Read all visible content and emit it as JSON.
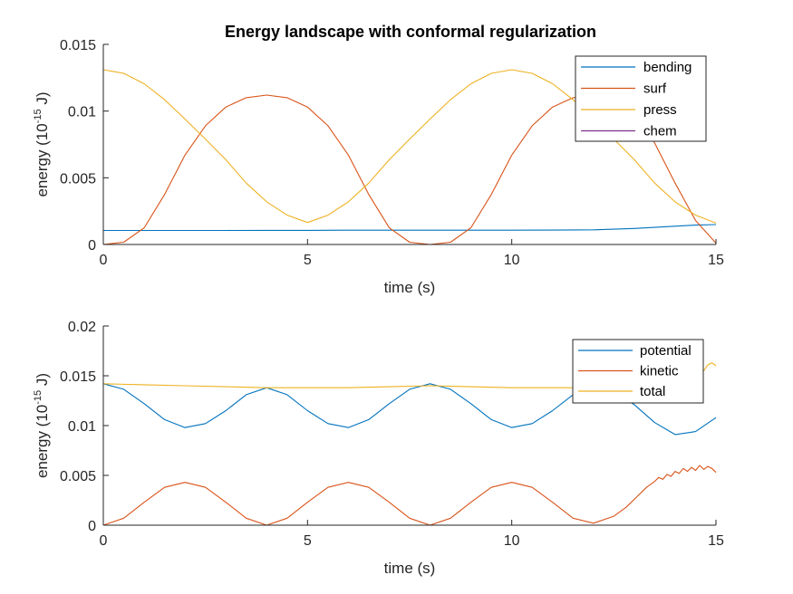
{
  "chart_data": [
    {
      "type": "line",
      "title": "Energy landscape with conformal regularization",
      "xlabel": "time (s)",
      "ylabel_main": "energy (10",
      "ylabel_sup": "-15",
      "ylabel_end": " J)",
      "xlim": [
        0,
        15
      ],
      "ylim": [
        0,
        0.015
      ],
      "xticks": [
        0,
        5,
        10,
        15
      ],
      "xtick_labels": [
        "0",
        "5",
        "10",
        "15"
      ],
      "yticks": [
        0,
        0.005,
        0.01,
        0.015
      ],
      "ytick_labels": [
        "0",
        "0.005",
        "0.01",
        "0.015"
      ],
      "legend_position": "top-right",
      "series": [
        {
          "name": "bending",
          "color": "#0072BD",
          "x": [
            0,
            1,
            2,
            3,
            4,
            5,
            6,
            7,
            8,
            9,
            10,
            11,
            12,
            13,
            13.5,
            14,
            14.5,
            15
          ],
          "y": [
            0.00105,
            0.00105,
            0.00105,
            0.00105,
            0.00106,
            0.00106,
            0.00107,
            0.00107,
            0.00107,
            0.00107,
            0.00107,
            0.00108,
            0.0011,
            0.0012,
            0.00128,
            0.00137,
            0.00145,
            0.00149
          ]
        },
        {
          "name": "surf",
          "color": "#D95319",
          "x": [
            0,
            0.5,
            1,
            1.5,
            2,
            2.5,
            3,
            3.5,
            4,
            4.5,
            5,
            5.5,
            6,
            6.5,
            7,
            7.5,
            8,
            8.5,
            9,
            9.5,
            10,
            10.5,
            11,
            11.5,
            12,
            12.5,
            13,
            13.5,
            14,
            14.5,
            15
          ],
          "y": [
            0,
            0.00017,
            0.00125,
            0.00375,
            0.0067,
            0.0089,
            0.0103,
            0.011,
            0.0112,
            0.011,
            0.0103,
            0.0089,
            0.0067,
            0.00375,
            0.00125,
            0.00017,
            0,
            0.00017,
            0.00125,
            0.00375,
            0.0067,
            0.0089,
            0.0103,
            0.011,
            0.0112,
            0.011,
            0.0099,
            0.0076,
            0.0046,
            0.0018,
            0.0001
          ]
        },
        {
          "name": "press",
          "color": "#EDB120",
          "x": [
            0,
            0.5,
            1,
            1.5,
            2,
            2.5,
            3,
            3.5,
            4,
            4.5,
            5,
            5.5,
            6,
            6.5,
            7,
            7.5,
            8,
            8.5,
            9,
            9.5,
            10,
            10.5,
            11,
            11.5,
            12,
            12.5,
            13,
            13.5,
            14,
            14.5,
            15
          ],
          "y": [
            0.0131,
            0.01283,
            0.01205,
            0.01085,
            0.0094,
            0.0079,
            0.00635,
            0.0046,
            0.0032,
            0.0022,
            0.00165,
            0.0022,
            0.0032,
            0.0046,
            0.00635,
            0.0079,
            0.0094,
            0.01085,
            0.01205,
            0.01283,
            0.0131,
            0.01283,
            0.01205,
            0.01085,
            0.0094,
            0.0079,
            0.00635,
            0.0046,
            0.0032,
            0.0022,
            0.0016
          ]
        },
        {
          "name": "chem",
          "color": "#7E2F8E",
          "x": [
            0,
            15
          ],
          "y": [
            0,
            0
          ]
        }
      ]
    },
    {
      "type": "line",
      "xlabel": "time (s)",
      "ylabel_main": "energy (10",
      "ylabel_sup": "-15",
      "ylabel_end": " J)",
      "xlim": [
        0,
        15
      ],
      "ylim": [
        0,
        0.02
      ],
      "xticks": [
        0,
        5,
        10,
        15
      ],
      "xtick_labels": [
        "0",
        "5",
        "10",
        "15"
      ],
      "yticks": [
        0,
        0.005,
        0.01,
        0.015,
        0.02
      ],
      "ytick_labels": [
        "0",
        "0.005",
        "0.01",
        "0.015",
        "0.02"
      ],
      "legend_position": "top-right",
      "series": [
        {
          "name": "potential",
          "color": "#0072BD",
          "x": [
            0,
            0.5,
            1,
            1.5,
            2,
            2.5,
            3,
            3.5,
            4,
            4.5,
            5,
            5.5,
            6,
            6.5,
            7,
            7.5,
            8,
            8.5,
            9,
            9.5,
            10,
            10.5,
            11,
            11.5,
            12,
            12.5,
            13,
            13.5,
            14,
            14.5,
            15
          ],
          "y": [
            0.0142,
            0.01365,
            0.0122,
            0.0106,
            0.0098,
            0.0102,
            0.0115,
            0.0131,
            0.0138,
            0.0131,
            0.0115,
            0.0102,
            0.0098,
            0.0106,
            0.0122,
            0.01365,
            0.0142,
            0.01365,
            0.0122,
            0.0106,
            0.0098,
            0.0102,
            0.0115,
            0.0131,
            0.0139,
            0.0134,
            0.0121,
            0.0103,
            0.0091,
            0.0094,
            0.0108
          ]
        },
        {
          "name": "kinetic",
          "color": "#D95319",
          "x": [
            0,
            0.5,
            1,
            1.5,
            2,
            2.5,
            3,
            3.5,
            4,
            4.5,
            5,
            5.5,
            6,
            6.5,
            7,
            7.5,
            8,
            8.5,
            9,
            9.5,
            10,
            10.5,
            11,
            11.5,
            12,
            12.5,
            12.8,
            13.1,
            13.3,
            13.5,
            13.6,
            13.7,
            13.8,
            13.9,
            14.0,
            14.1,
            14.2,
            14.3,
            14.4,
            14.5,
            14.6,
            14.7,
            14.8,
            14.9,
            15
          ],
          "y": [
            0,
            0.0007,
            0.0023,
            0.0038,
            0.0043,
            0.0038,
            0.0023,
            0.0007,
            0,
            0.0007,
            0.0023,
            0.0038,
            0.0043,
            0.0038,
            0.0023,
            0.0007,
            0,
            0.0007,
            0.0023,
            0.0038,
            0.0043,
            0.0038,
            0.0023,
            0.0007,
            0.0002,
            0.0009,
            0.0018,
            0.003,
            0.0038,
            0.0044,
            0.0048,
            0.0046,
            0.0051,
            0.0049,
            0.0054,
            0.0052,
            0.0057,
            0.0054,
            0.0058,
            0.0055,
            0.006,
            0.0056,
            0.0059,
            0.0057,
            0.0053
          ]
        },
        {
          "name": "total",
          "color": "#EDB120",
          "x": [
            0,
            1,
            2,
            3,
            4,
            5,
            6,
            7,
            8,
            9,
            10,
            11,
            12,
            13,
            13.5,
            14,
            14.3,
            14.5,
            14.7,
            14.8,
            14.9,
            15
          ],
          "y": [
            0.0142,
            0.0141,
            0.014,
            0.0139,
            0.0138,
            0.0138,
            0.0138,
            0.0139,
            0.014,
            0.0139,
            0.0138,
            0.0138,
            0.0138,
            0.0138,
            0.0139,
            0.0141,
            0.0144,
            0.0147,
            0.0155,
            0.0161,
            0.0163,
            0.016
          ]
        }
      ]
    }
  ]
}
